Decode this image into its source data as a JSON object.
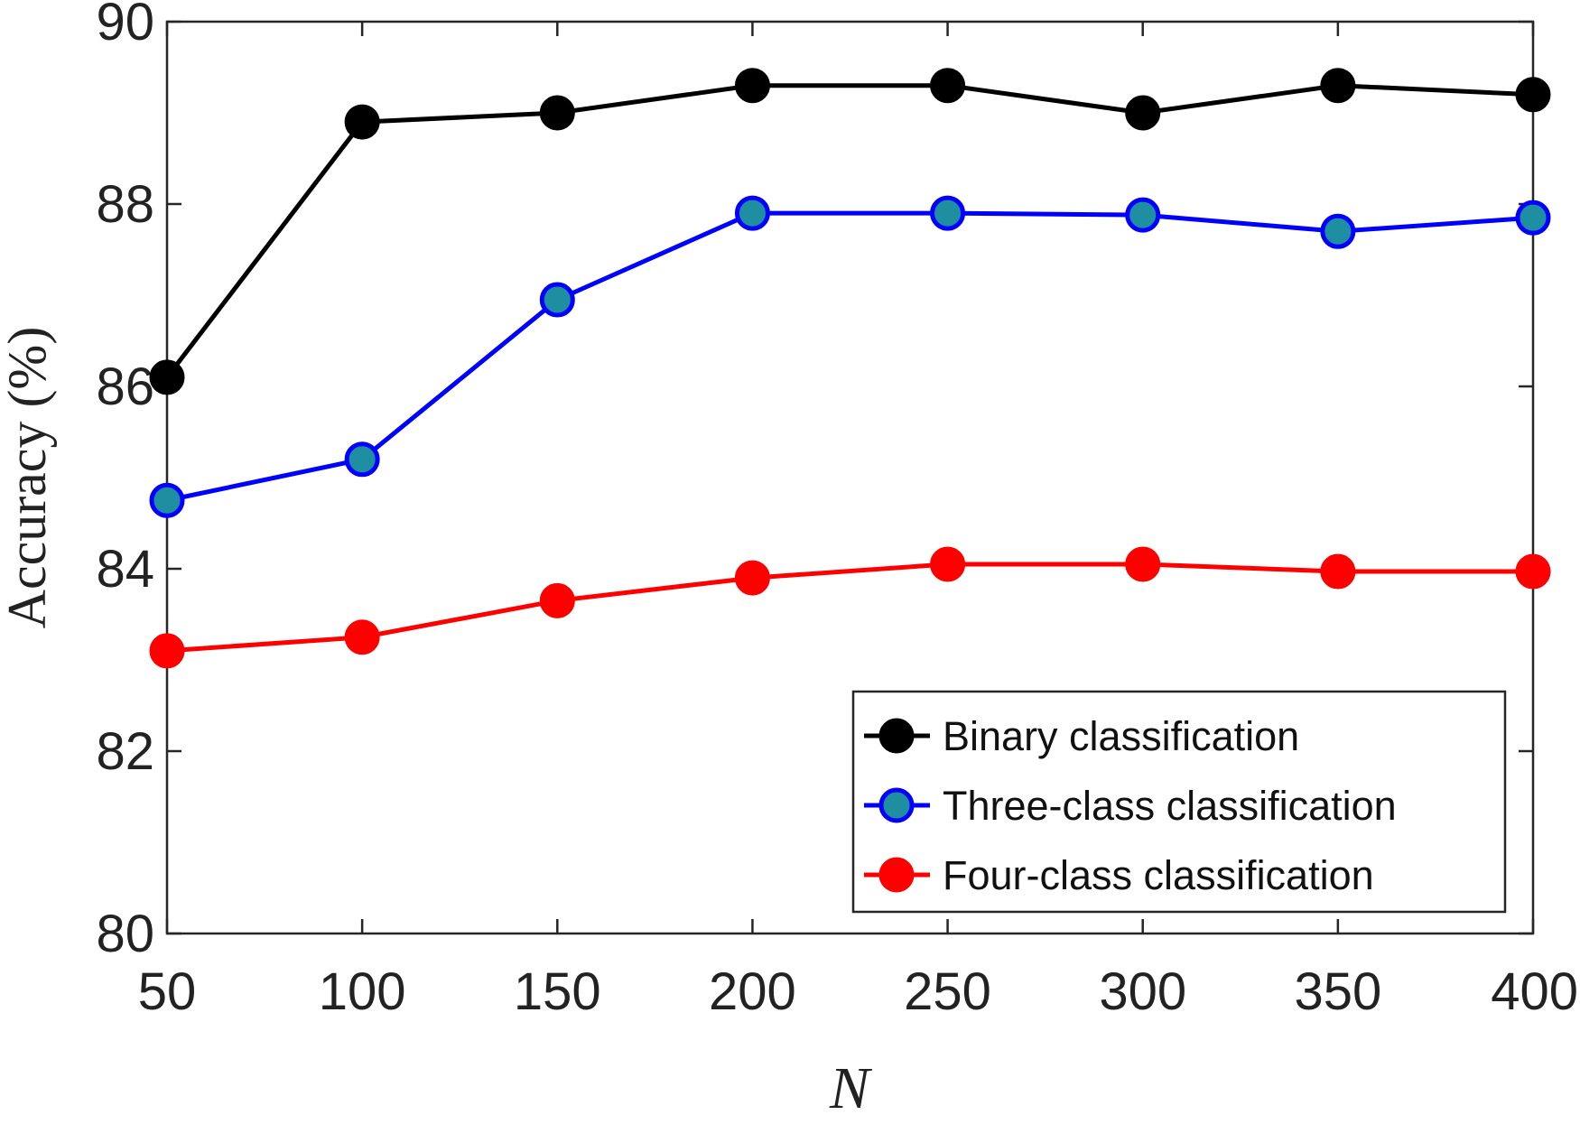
{
  "chart_data": {
    "type": "line",
    "x": [
      50,
      100,
      150,
      200,
      250,
      300,
      350,
      400
    ],
    "xlabel": "N",
    "ylabel": "Accuracy (%)",
    "xlim": [
      50,
      400
    ],
    "ylim": [
      80,
      90
    ],
    "xticks": [
      "50",
      "100",
      "150",
      "200",
      "250",
      "300",
      "350",
      "400"
    ],
    "yticks": [
      "80",
      "82",
      "84",
      "86",
      "88",
      "90"
    ],
    "grid": false,
    "legend_position": "bottom-right",
    "series": [
      {
        "name": "Binary classification",
        "color": "#000000",
        "marker_fill": "#000000",
        "values": [
          86.1,
          88.9,
          89.0,
          89.3,
          89.3,
          89.0,
          89.3,
          89.2
        ]
      },
      {
        "name": "Three-class classification",
        "color": "#0000ff",
        "marker_fill": "#1e8fa0",
        "values": [
          84.75,
          85.2,
          86.95,
          87.9,
          87.9,
          87.88,
          87.7,
          87.85
        ]
      },
      {
        "name": "Four-class classification",
        "color": "#ff0000",
        "marker_fill": "#ff0000",
        "values": [
          83.1,
          83.25,
          83.65,
          83.9,
          84.05,
          84.05,
          83.97,
          83.97
        ]
      }
    ]
  }
}
